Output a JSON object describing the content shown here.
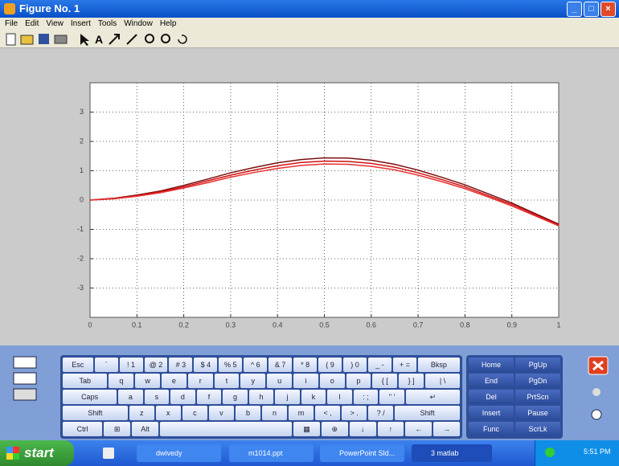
{
  "window": {
    "title": "Figure No. 1",
    "menu": [
      "File",
      "Edit",
      "View",
      "Insert",
      "Tools",
      "Window",
      "Help"
    ]
  },
  "chart_data": {
    "type": "line",
    "x": [
      0,
      0.05,
      0.1,
      0.15,
      0.2,
      0.25,
      0.3,
      0.35,
      0.4,
      0.45,
      0.5,
      0.55,
      0.6,
      0.65,
      0.7,
      0.75,
      0.8,
      0.85,
      0.9,
      0.95,
      1
    ],
    "series": [
      {
        "color": "#7a1010",
        "values": [
          0,
          0.06,
          0.17,
          0.31,
          0.5,
          0.71,
          0.93,
          1.11,
          1.27,
          1.38,
          1.44,
          1.43,
          1.36,
          1.22,
          1.02,
          0.78,
          0.52,
          0.21,
          -0.1,
          -0.46,
          -0.82
        ]
      },
      {
        "color": "#d01010",
        "values": [
          0,
          0.05,
          0.15,
          0.28,
          0.45,
          0.65,
          0.85,
          1.02,
          1.17,
          1.28,
          1.33,
          1.32,
          1.25,
          1.12,
          0.93,
          0.7,
          0.45,
          0.15,
          -0.15,
          -0.5,
          -0.85
        ]
      },
      {
        "color": "#e83030",
        "values": [
          0,
          0.04,
          0.13,
          0.25,
          0.41,
          0.59,
          0.78,
          0.94,
          1.08,
          1.18,
          1.23,
          1.22,
          1.15,
          1.03,
          0.85,
          0.63,
          0.39,
          0.1,
          -0.2,
          -0.54,
          -0.88
        ]
      }
    ],
    "xlim": [
      0,
      1
    ],
    "xticks": [
      0,
      0.1,
      0.2,
      0.3,
      0.4,
      0.5,
      0.6,
      0.7,
      0.8,
      0.9,
      1
    ],
    "ylim": [
      -4,
      4
    ],
    "yticks": [
      -3,
      -2,
      -1,
      0,
      1,
      2,
      3
    ],
    "grid": true
  },
  "keyboard": {
    "rows": [
      [
        "Esc",
        "`",
        "! 1",
        "@ 2",
        "# 3",
        "$ 4",
        "% 5",
        "^ 6",
        "& 7",
        "* 8",
        "( 9",
        ") 0",
        "_ -",
        "+ =",
        "Bksp"
      ],
      [
        "Tab",
        "q",
        "w",
        "e",
        "r",
        "t",
        "y",
        "u",
        "i",
        "o",
        "p",
        "{ [",
        "} ]",
        "| \\"
      ],
      [
        "Caps",
        "a",
        "s",
        "d",
        "f",
        "g",
        "h",
        "j",
        "k",
        "l",
        ": ;",
        "\" '",
        "↵"
      ],
      [
        "Shift",
        "z",
        "x",
        "c",
        "v",
        "b",
        "n",
        "m",
        "< ,",
        "> .",
        "? /",
        "Shift"
      ],
      [
        "Ctrl",
        "⊞",
        "Alt",
        "▦",
        "⊕",
        "↓",
        "↑",
        "←",
        "→"
      ]
    ],
    "nav_rows": [
      [
        "Home",
        "PgUp"
      ],
      [
        "End",
        "PgDn"
      ],
      [
        "Del",
        "PrtScn"
      ],
      [
        "Insert",
        "Pause"
      ],
      [
        "Func",
        "ScrLk"
      ]
    ]
  },
  "taskbar": {
    "start": "start",
    "items": [
      "dwivedy",
      "m1014.ppt",
      "PowerPoint Sld...",
      "3 matlab"
    ],
    "clock": "5:51 PM"
  }
}
